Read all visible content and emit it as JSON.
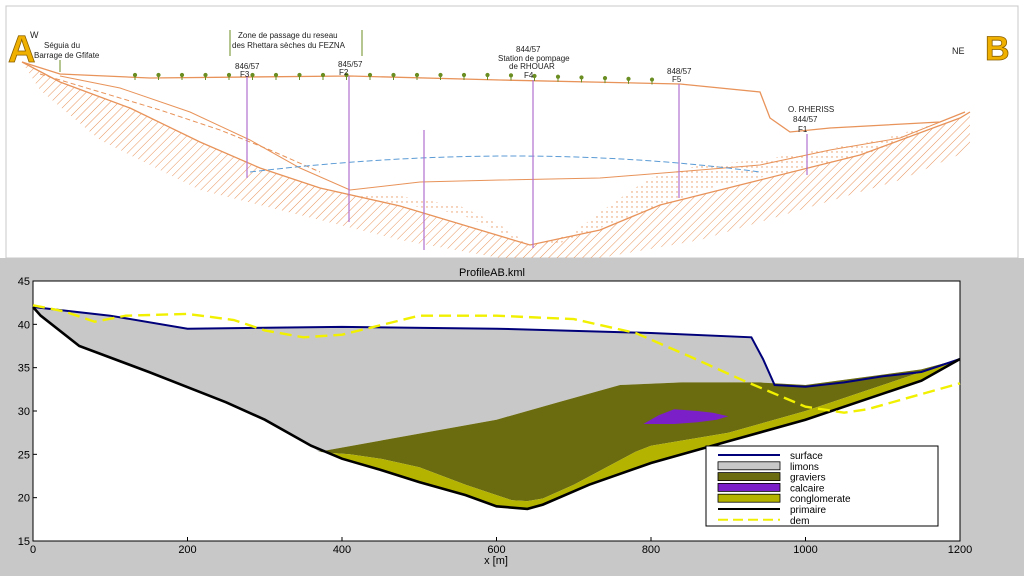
{
  "cross_section": {
    "label_a": "A",
    "label_b": "B",
    "dir_left": "W",
    "dir_right": "NE",
    "seguia_line1": "Séguia du",
    "seguia_line2": "Barrage de Gfifate",
    "zone_line1": "Zone de passage du reseau",
    "zone_line2": "des Rhettara sèches du FEZNA",
    "wells": [
      {
        "code": "846/57",
        "name": "F3"
      },
      {
        "code": "845/57",
        "name": "F2"
      },
      {
        "code": "844/57",
        "name": "F4",
        "extra1": "Station de pompage",
        "extra2": "de RHOUAR"
      },
      {
        "code": "848/57",
        "name": "F5"
      },
      {
        "code": "844/57",
        "name": "F1",
        "extra1": "O. RHERISS"
      }
    ]
  },
  "colors": {
    "section_orange": "#e8935a",
    "well_purple": "#b070d0",
    "water_blue": "#5b9bd5",
    "surface": "#00007a",
    "limons": "#c8c8c8",
    "graviers": "#6b6b10",
    "calcaire": "#7b20c8",
    "conglomerate": "#b4b400",
    "primaire": "#000000",
    "dem": "#f0f000",
    "label_gold": "#f0b000",
    "frame_gray": "#c8c8c8"
  },
  "chart_data": {
    "type": "area",
    "title": "ProfileAB.kml",
    "xlabel": "x [m]",
    "ylabel": "",
    "xlim": [
      0,
      1200
    ],
    "ylim": [
      15,
      45
    ],
    "xticks": [
      0,
      200,
      400,
      600,
      800,
      1000,
      1200
    ],
    "yticks": [
      15,
      20,
      25,
      30,
      35,
      40,
      45
    ],
    "legend_position": "lower-right",
    "legend": [
      "surface",
      "limons",
      "graviers",
      "calcaire",
      "conglomerate",
      "primaire",
      "dem"
    ],
    "surface": {
      "x": [
        0,
        100,
        200,
        400,
        600,
        800,
        930,
        945,
        960,
        1000,
        1050,
        1100,
        1150,
        1200
      ],
      "y": [
        42,
        41,
        39.5,
        39.7,
        39.5,
        39,
        38.5,
        36,
        33,
        32.8,
        33.3,
        34,
        34.5,
        36
      ]
    },
    "primaire": {
      "x": [
        0,
        10,
        60,
        150,
        250,
        300,
        360,
        400,
        450,
        500,
        560,
        600,
        640,
        660,
        720,
        800,
        900,
        1000,
        1100,
        1150,
        1200
      ],
      "y": [
        42,
        41,
        37.5,
        34.5,
        31,
        29,
        26,
        24.5,
        23.2,
        21.8,
        20.3,
        19,
        18.7,
        19.2,
        21.5,
        24,
        26.5,
        29,
        32,
        33.5,
        36
      ]
    },
    "conglomerate": {
      "x": [
        380,
        410,
        450,
        500,
        560,
        600,
        620,
        640,
        660,
        700,
        780,
        800,
        900,
        1000,
        1100,
        1150,
        1200
      ],
      "y": [
        25.2,
        25,
        24.5,
        23.5,
        21.5,
        20.3,
        19.7,
        19.6,
        19.9,
        21.5,
        25.3,
        26,
        27.5,
        30,
        33,
        34.5,
        36
      ]
    },
    "graviers_top": {
      "x": [
        370,
        600,
        680,
        760,
        840,
        940,
        1000,
        1100,
        1150,
        1200
      ],
      "y": [
        25.3,
        29,
        31,
        33,
        33.3,
        33.3,
        33,
        34.2,
        34.8,
        36
      ]
    },
    "calcaire": {
      "x": [
        790,
        810,
        830,
        860,
        880,
        900,
        885,
        860,
        830,
        810
      ],
      "y": [
        28.5,
        29.5,
        30.2,
        30.0,
        29.8,
        29.4,
        29.0,
        28.7,
        28.5,
        28.5
      ]
    },
    "dem": {
      "x": [
        0,
        40,
        80,
        120,
        200,
        260,
        300,
        350,
        400,
        500,
        600,
        700,
        780,
        850,
        920,
        1000,
        1050,
        1080,
        1120,
        1200
      ],
      "y": [
        42.2,
        41.5,
        40.3,
        41,
        41.2,
        40.5,
        39.3,
        38.5,
        38.8,
        41,
        41,
        40.6,
        39,
        36.3,
        33.5,
        30.5,
        29.8,
        30.2,
        31.2,
        33.2
      ]
    }
  }
}
